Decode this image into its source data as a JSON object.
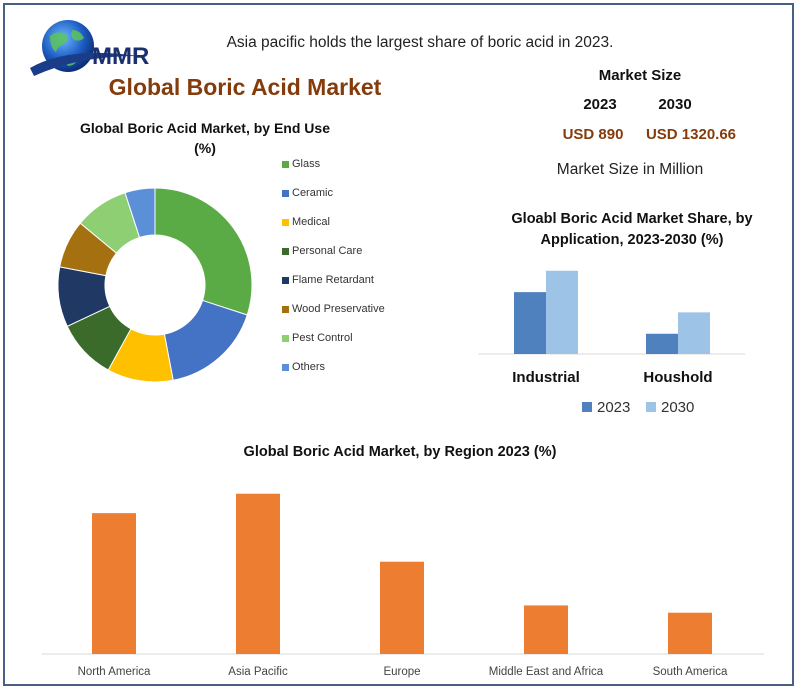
{
  "brand": {
    "logo_text": "MMR"
  },
  "headline": "Asia pacific holds the largest share of boric acid in 2023.",
  "main_title": "Global Boric Acid Market",
  "market_size": {
    "title": "Market Size",
    "year_1": "2023",
    "year_2": "2030",
    "value_1": "USD 890",
    "value_2": "USD 1320.66",
    "unit_note": "Market Size in Million"
  },
  "colors": {
    "frame": "#4a5f86",
    "title_brown": "#843c0c",
    "orange_bar": "#ed7d31",
    "blue_2023": "#4e81bd",
    "blue_2030": "#9dc3e6"
  },
  "chart_data": [
    {
      "type": "pie",
      "subtype": "donut",
      "title": "Global Boric Acid Market, by End Use  (%)",
      "legend_position": "right",
      "slices": [
        {
          "label": "Glass",
          "value": 30,
          "color": "#5aaa46"
        },
        {
          "label": "Ceramic",
          "value": 17,
          "color": "#4472c4"
        },
        {
          "label": "Medical",
          "value": 11,
          "color": "#ffc000"
        },
        {
          "label": "Personal Care",
          "value": 10,
          "color": "#3a6b2a"
        },
        {
          "label": "Flame Retardant",
          "value": 10,
          "color": "#203864"
        },
        {
          "label": "Wood Preservative",
          "value": 8,
          "color": "#a5700f"
        },
        {
          "label": "Pest Control",
          "value": 9,
          "color": "#8fcf73"
        },
        {
          "label": "Others",
          "value": 5,
          "color": "#5b8fd8"
        }
      ]
    },
    {
      "type": "bar",
      "title": "Gloabl Boric Acid Market Share, by Application, 2023-2030 (%)",
      "categories": [
        "Industrial",
        "Houshold"
      ],
      "series": [
        {
          "name": "2023",
          "values": [
            55,
            18
          ],
          "color": "#4e81bd"
        },
        {
          "name": "2030",
          "values": [
            74,
            37
          ],
          "color": "#9dc3e6"
        }
      ],
      "ylim": [
        0,
        80
      ],
      "legend_position": "bottom",
      "grid": false
    },
    {
      "type": "bar",
      "title": "Global Boric Acid Market, by Region 2023 (%)",
      "categories": [
        "North America",
        "Asia Pacific",
        "Europe",
        "Middle East and Africa",
        "South America"
      ],
      "values": [
        29,
        33,
        19,
        10,
        8.5
      ],
      "color": "#ed7d31",
      "ylim": [
        0,
        35
      ],
      "grid": false
    }
  ]
}
